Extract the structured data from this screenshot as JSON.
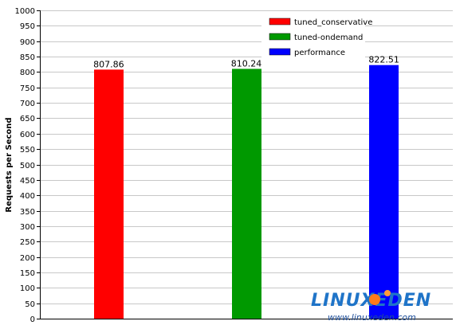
{
  "chart_data": {
    "type": "bar",
    "title": "",
    "xlabel": "",
    "ylabel": "Requests per Second",
    "ylim": [
      0,
      1000
    ],
    "ytick_step": 50,
    "grid": true,
    "legend_position": "top-right",
    "series": [
      {
        "name": "tuned_conservative",
        "value": 807.86,
        "label": "807.86",
        "color": "#ff0000"
      },
      {
        "name": "tuned-ondemand",
        "value": 810.24,
        "label": "810.24",
        "color": "#009900"
      },
      {
        "name": "performance",
        "value": 822.51,
        "label": "822.51",
        "color": "#0000ff"
      }
    ]
  },
  "watermark": {
    "logo_text": "LINUXEDEN",
    "url": "www.linuxeden.com"
  }
}
